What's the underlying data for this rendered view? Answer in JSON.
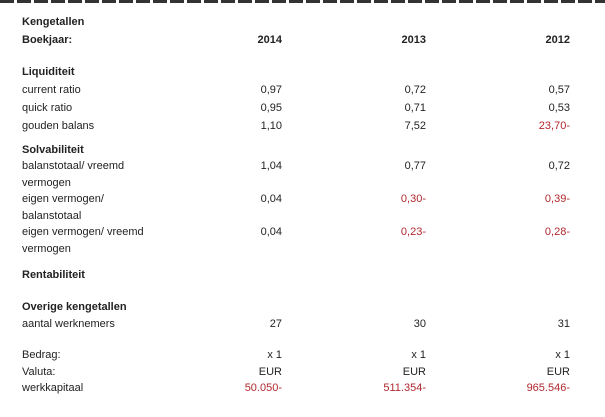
{
  "title": "Kengetallen",
  "header": {
    "label": "Boekjaar:",
    "years": [
      "2014",
      "2013",
      "2012"
    ]
  },
  "colors": {
    "text": "#222222",
    "negative": "#b0282e"
  },
  "sections": {
    "liquiditeit": {
      "title": "Liquiditeit",
      "rows": [
        {
          "label": "current ratio",
          "values": [
            "0,97",
            "0,72",
            "0,57"
          ]
        },
        {
          "label": "quick ratio",
          "values": [
            "0,95",
            "0,71",
            "0,53"
          ]
        },
        {
          "label": "gouden balans",
          "values": [
            "1,10",
            "7,52",
            "23,70-"
          ]
        }
      ]
    },
    "solvabiliteit": {
      "title": "Solvabiliteit",
      "rows": [
        {
          "label": "balanstotaal/ vreemd vermogen",
          "values": [
            "1,04",
            "0,77",
            "0,72"
          ]
        },
        {
          "label": "eigen vermogen/ balanstotaal",
          "values": [
            "0,04",
            "0,30-",
            "0,39-"
          ]
        },
        {
          "label": "eigen vermogen/ vreemd vermogen",
          "values": [
            "0,04",
            "0,23-",
            "0,28-"
          ]
        }
      ]
    },
    "rentabiliteit": {
      "title": "Rentabiliteit"
    },
    "overige": {
      "title": "Overige kengetallen",
      "rows": [
        {
          "label": "aantal werknemers",
          "values": [
            "27",
            "30",
            "31"
          ]
        }
      ]
    },
    "footer": {
      "rows": [
        {
          "label": "Bedrag:",
          "values": [
            "x 1",
            "x 1",
            "x 1"
          ]
        },
        {
          "label": "Valuta:",
          "values": [
            "EUR",
            "EUR",
            "EUR"
          ]
        },
        {
          "label": "werkkapitaal",
          "values": [
            "50.050-",
            "511.354-",
            "965.546-"
          ]
        }
      ]
    }
  }
}
